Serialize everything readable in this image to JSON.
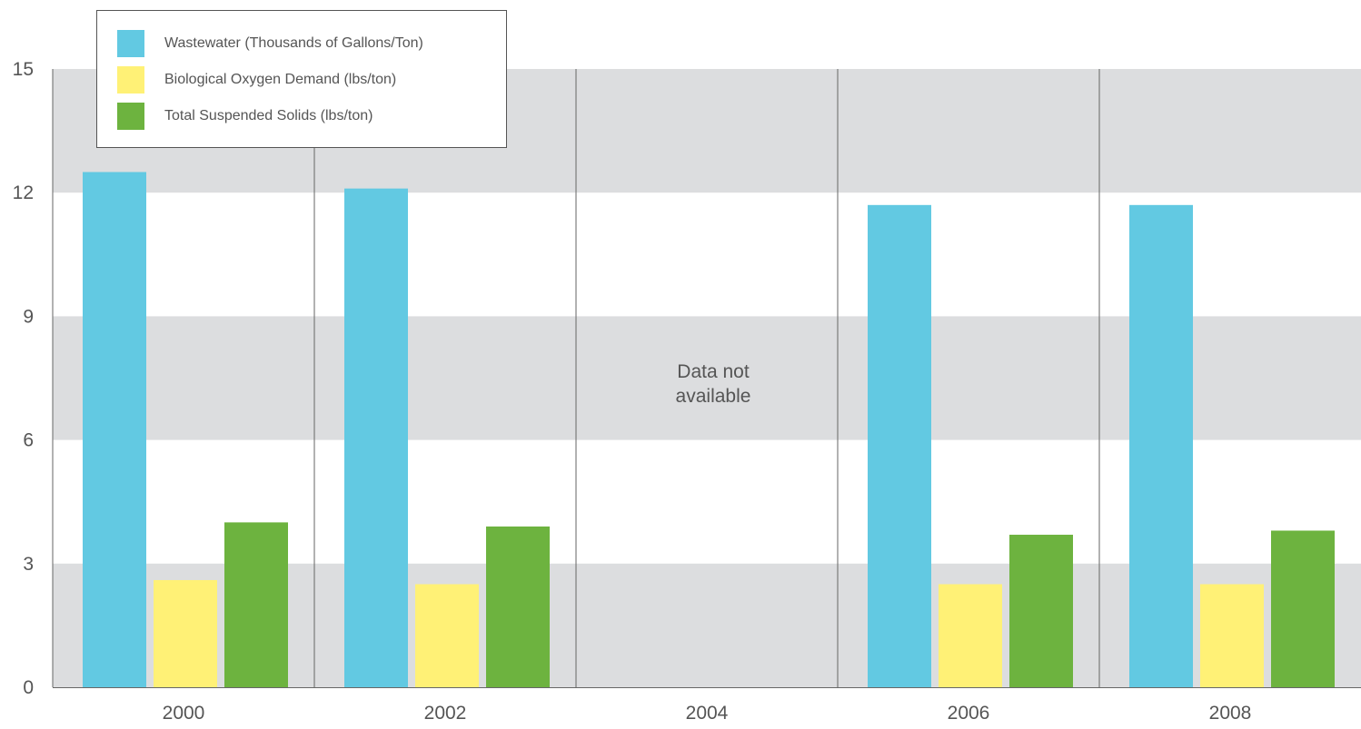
{
  "chart_data": {
    "type": "bar",
    "categories": [
      "2000",
      "2002",
      "2004",
      "2006",
      "2008"
    ],
    "series": [
      {
        "name": "Wastewater (Thousands of Gallons/Ton)",
        "color": "#62c9e2",
        "values": [
          12.5,
          12.1,
          null,
          11.7,
          11.7
        ]
      },
      {
        "name": "Biological Oxygen Demand (lbs/ton)",
        "color": "#fff176",
        "values": [
          2.6,
          2.5,
          null,
          2.5,
          2.5
        ]
      },
      {
        "name": "Total Suspended Solids (lbs/ton)",
        "color": "#6db33f",
        "values": [
          4.0,
          3.9,
          null,
          3.7,
          3.8
        ]
      }
    ],
    "y_ticks": [
      "0",
      "3",
      "6",
      "9",
      "12",
      "15"
    ],
    "ylim": [
      0,
      15
    ],
    "annotation": "Data not available",
    "annotation_category": "2004",
    "band_color": "#dcdddf",
    "legend_position": "top-left",
    "title": "",
    "xlabel": "",
    "ylabel": ""
  }
}
